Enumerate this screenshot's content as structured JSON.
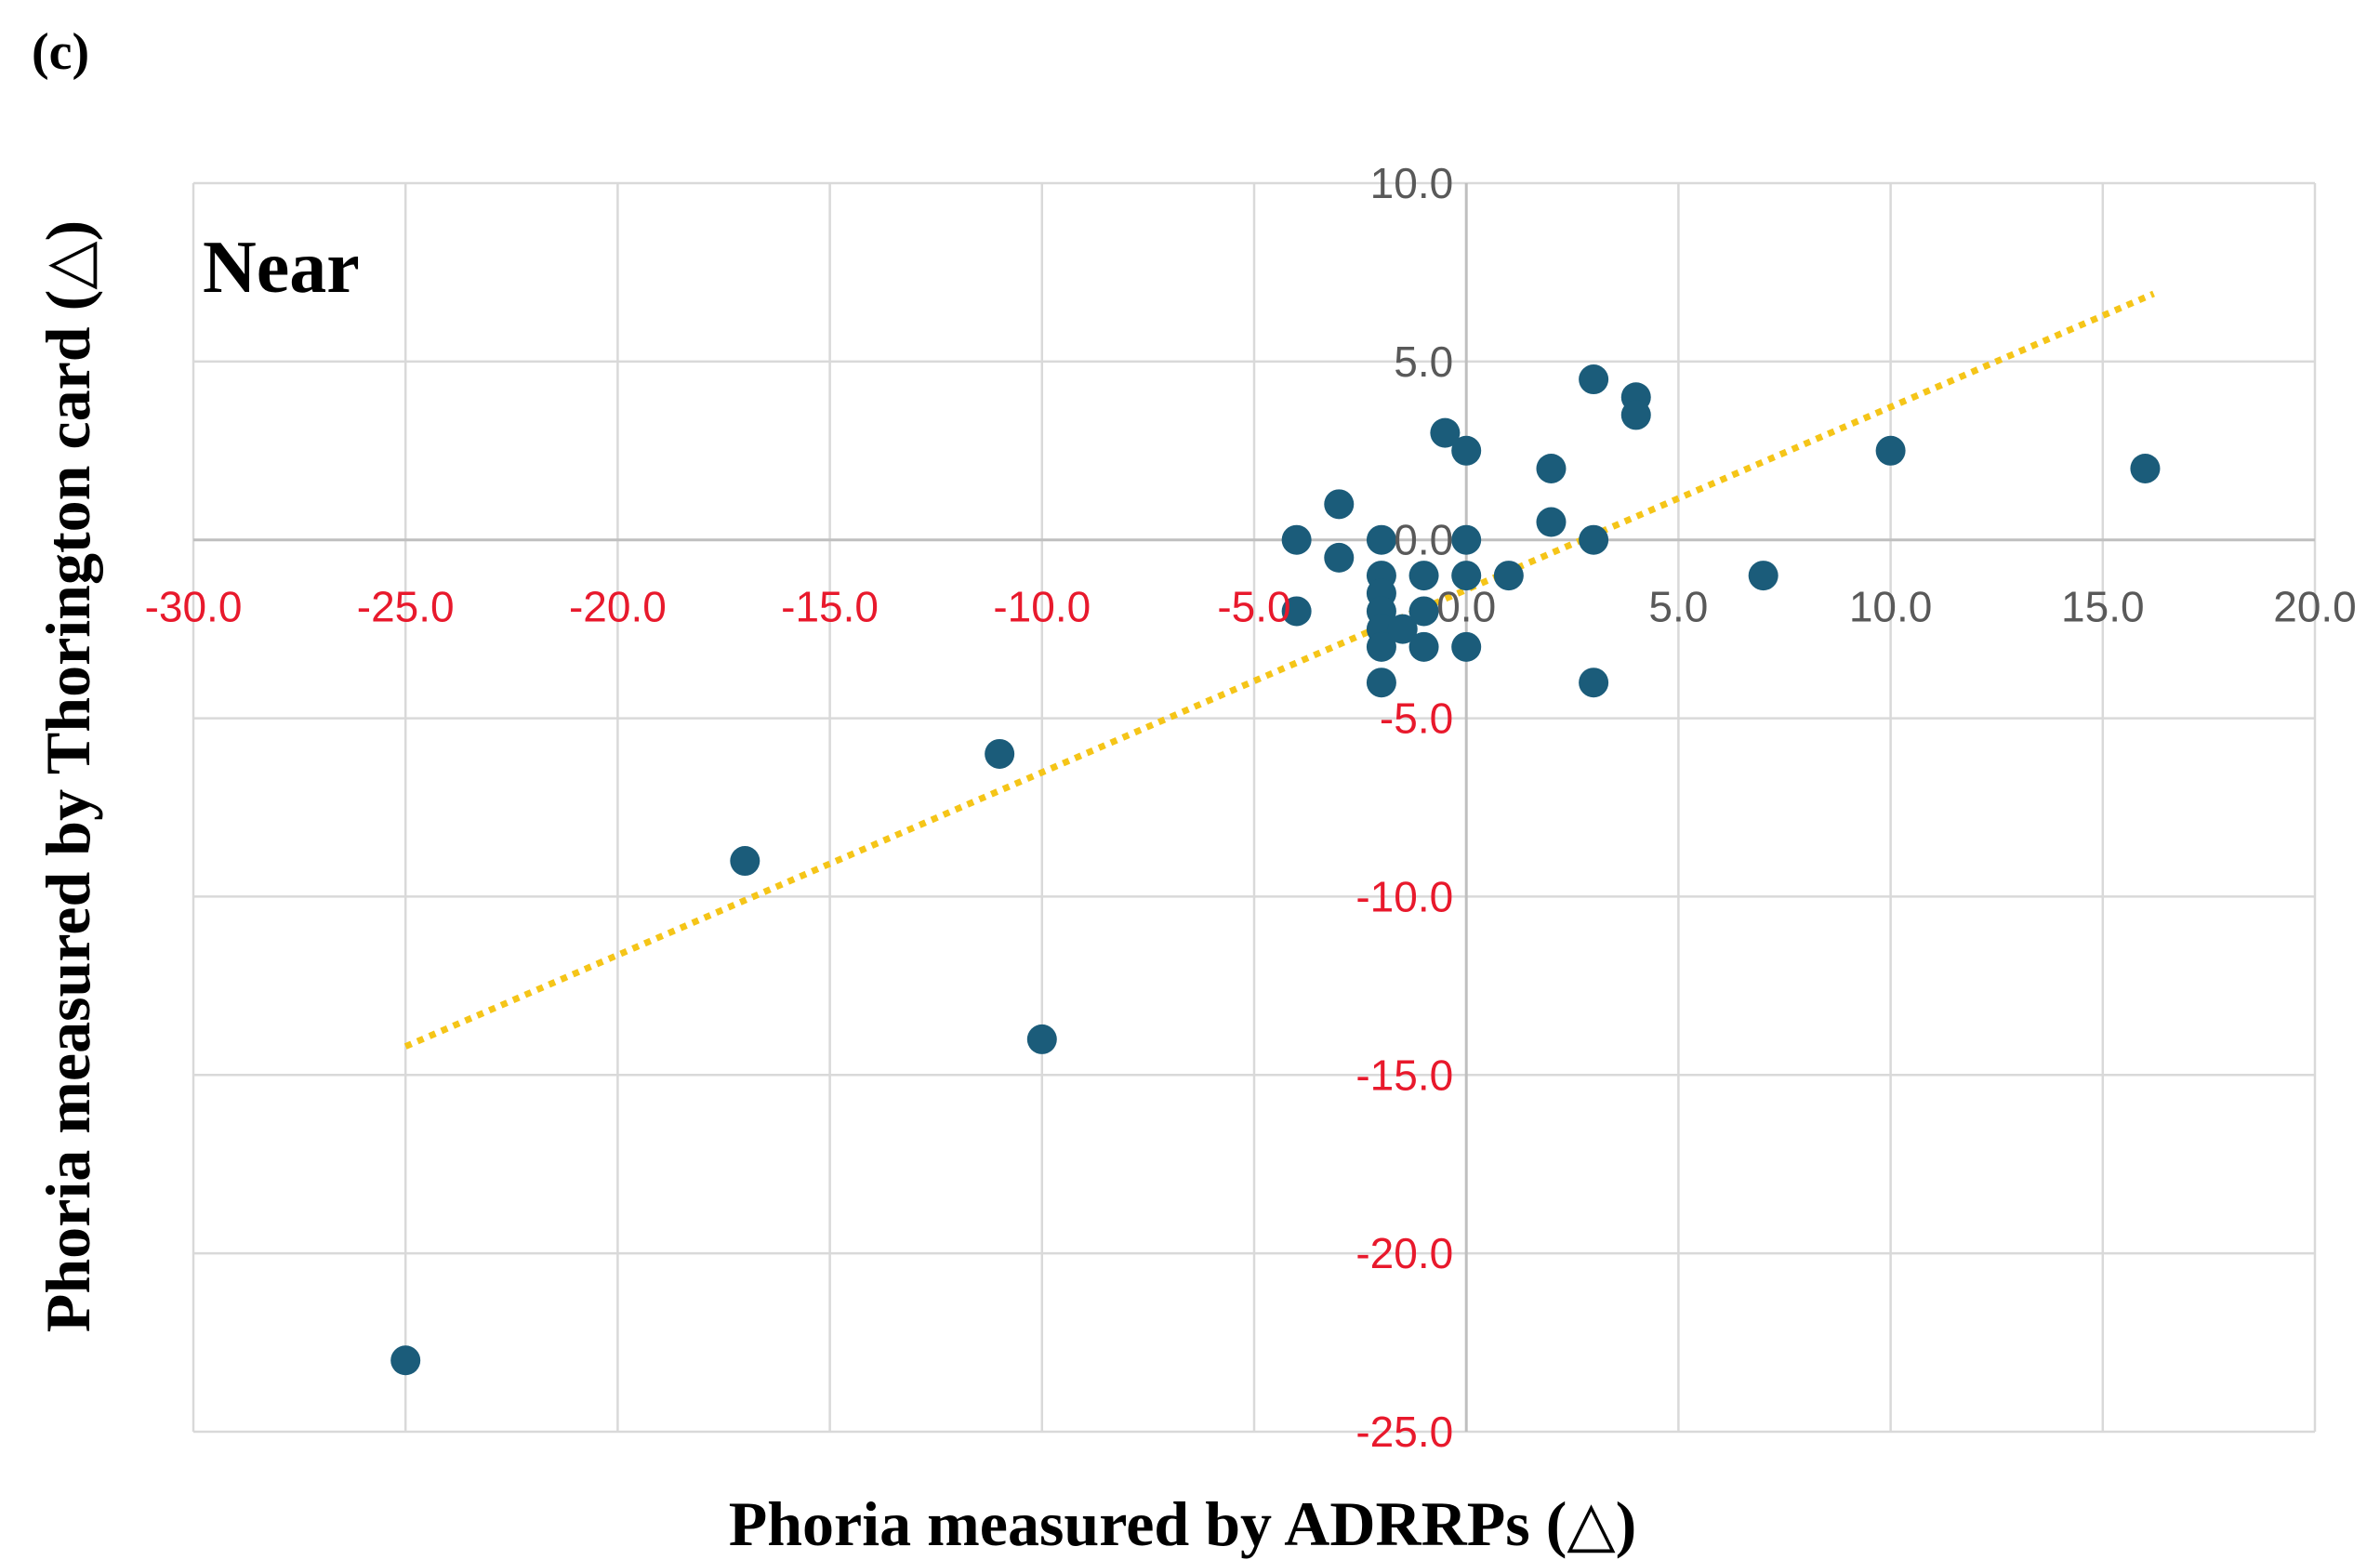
{
  "panel_label": "(c)",
  "chart_data": {
    "type": "scatter",
    "annotation": "Near",
    "title": "",
    "xlabel": "Phoria measured by ADRRPs (△)",
    "ylabel": "Phoria measured by Thorington card (△)",
    "xlim": [
      -30,
      20
    ],
    "ylim": [
      -25,
      10
    ],
    "x_ticks": [
      -30,
      -25,
      -20,
      -15,
      -10,
      -5,
      0,
      5,
      10,
      15,
      20
    ],
    "y_ticks": [
      -25,
      -20,
      -15,
      -10,
      -5,
      0,
      5,
      10
    ],
    "x_tick_labels": [
      "-30.0",
      "-25.0",
      "-20.0",
      "-15.0",
      "-10.0",
      "-5.0",
      "0.0",
      "5.0",
      "10.0",
      "15.0",
      "20.0"
    ],
    "y_tick_labels": [
      "-25.0",
      "-20.0",
      "-15.0",
      "-10.0",
      "-5.0",
      "0.0",
      "5.0",
      "10.0"
    ],
    "grid": true,
    "negative_tick_color": "#e8192c",
    "positive_tick_color": "#595959",
    "point_color": "#1b5c7a",
    "trendline_color": "#f5c518",
    "trendline": {
      "style": "dotted",
      "x": [
        -25,
        16.2
      ],
      "y": [
        -14.2,
        6.9
      ]
    },
    "points": [
      {
        "x": -25,
        "y": -23
      },
      {
        "x": -17,
        "y": -9
      },
      {
        "x": -11,
        "y": -6
      },
      {
        "x": -10,
        "y": -14
      },
      {
        "x": -4,
        "y": 0
      },
      {
        "x": -4,
        "y": -2
      },
      {
        "x": -3,
        "y": 1
      },
      {
        "x": -3,
        "y": -0.5
      },
      {
        "x": -2,
        "y": 0
      },
      {
        "x": -2,
        "y": -1
      },
      {
        "x": -2,
        "y": -1.5
      },
      {
        "x": -2,
        "y": -2
      },
      {
        "x": -2,
        "y": -2.5
      },
      {
        "x": -2,
        "y": -3
      },
      {
        "x": -2,
        "y": -4
      },
      {
        "x": -1.5,
        "y": -2.5
      },
      {
        "x": -1,
        "y": -1
      },
      {
        "x": -1,
        "y": -2
      },
      {
        "x": -1,
        "y": -3
      },
      {
        "x": -0.5,
        "y": 3
      },
      {
        "x": 0,
        "y": 2.5
      },
      {
        "x": 0,
        "y": 0
      },
      {
        "x": 0,
        "y": -1
      },
      {
        "x": 0,
        "y": -3
      },
      {
        "x": 1,
        "y": -1
      },
      {
        "x": 2,
        "y": 2
      },
      {
        "x": 2,
        "y": 0.5
      },
      {
        "x": 3,
        "y": 4.5
      },
      {
        "x": 3,
        "y": 0
      },
      {
        "x": 3,
        "y": -4
      },
      {
        "x": 4,
        "y": 4
      },
      {
        "x": 4,
        "y": 3.5
      },
      {
        "x": 7,
        "y": -1
      },
      {
        "x": 10,
        "y": 2.5
      },
      {
        "x": 16,
        "y": 2
      }
    ]
  }
}
